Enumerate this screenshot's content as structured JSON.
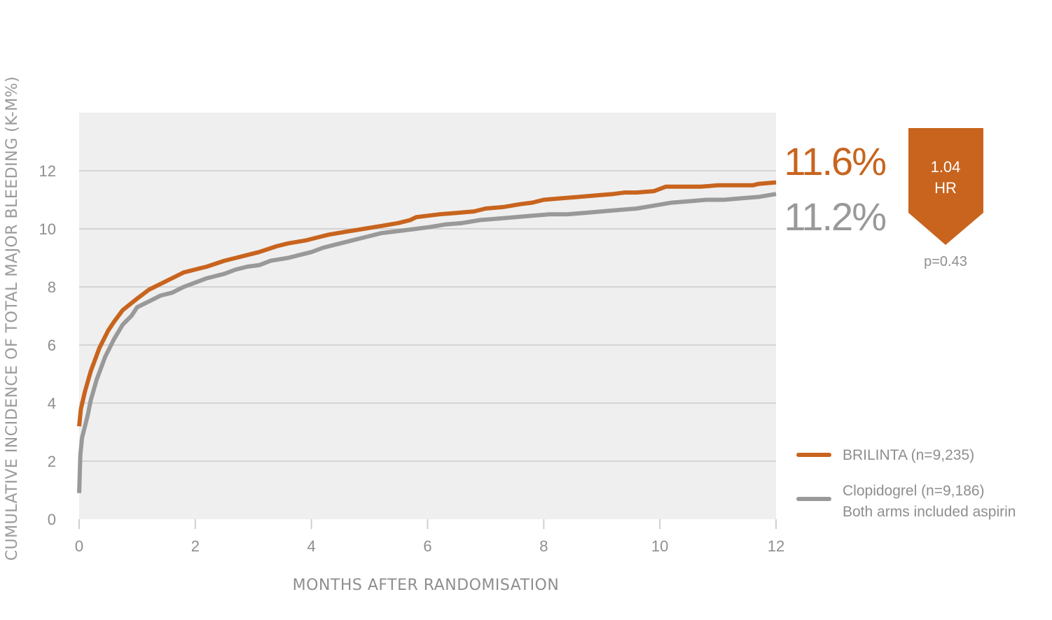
{
  "chart_data": {
    "type": "line",
    "ylabel": "CUMULATIVE INCIDENCE OF TOTAL MAJOR BLEEDING (K-M%)",
    "xlabel": "MONTHS AFTER RANDOMISATION",
    "xlim": [
      0,
      12
    ],
    "ylim": [
      0,
      14
    ],
    "x_ticks": [
      "0",
      "2",
      "4",
      "6",
      "8",
      "10",
      "12"
    ],
    "y_ticks": [
      "0",
      "2",
      "4",
      "6",
      "8",
      "10",
      "12"
    ],
    "grid": true,
    "legend_position": "bottom-right",
    "series": [
      {
        "name": "BRILINTA (n=9,235)",
        "color": "#C8641E",
        "end_label": "11.6%",
        "x": [
          0,
          0.03,
          0.1,
          0.2,
          0.35,
          0.5,
          0.6,
          0.75,
          1.0,
          1.2,
          1.5,
          1.8,
          2.0,
          2.2,
          2.5,
          2.7,
          2.9,
          3.1,
          3.4,
          3.6,
          3.9,
          4.1,
          4.3,
          4.6,
          4.9,
          5.2,
          5.5,
          5.7,
          5.8,
          6.0,
          6.2,
          6.5,
          6.8,
          7.0,
          7.3,
          7.6,
          7.8,
          8.0,
          8.3,
          8.6,
          8.9,
          9.2,
          9.4,
          9.6,
          9.9,
          10.1,
          10.4,
          10.7,
          11.0,
          11.3,
          11.6,
          11.7,
          12.0
        ],
        "values": [
          3.2,
          3.8,
          4.4,
          5.1,
          5.9,
          6.5,
          6.8,
          7.2,
          7.6,
          7.9,
          8.2,
          8.5,
          8.6,
          8.7,
          8.9,
          9.0,
          9.1,
          9.2,
          9.4,
          9.5,
          9.6,
          9.7,
          9.8,
          9.9,
          10.0,
          10.1,
          10.2,
          10.3,
          10.4,
          10.45,
          10.5,
          10.55,
          10.6,
          10.7,
          10.75,
          10.85,
          10.9,
          11.0,
          11.05,
          11.1,
          11.15,
          11.2,
          11.25,
          11.25,
          11.3,
          11.45,
          11.45,
          11.45,
          11.5,
          11.5,
          11.5,
          11.55,
          11.6
        ]
      },
      {
        "name": "Clopidogrel (n=9,186)",
        "color": "#999999",
        "end_label": "11.2%",
        "x": [
          0,
          0.02,
          0.05,
          0.1,
          0.15,
          0.2,
          0.3,
          0.45,
          0.6,
          0.75,
          0.9,
          1.0,
          1.2,
          1.4,
          1.6,
          1.8,
          2.0,
          2.2,
          2.5,
          2.7,
          2.9,
          3.1,
          3.3,
          3.6,
          3.8,
          4.0,
          4.2,
          4.4,
          4.6,
          4.8,
          5.0,
          5.2,
          5.4,
          5.6,
          5.8,
          6.0,
          6.3,
          6.6,
          6.9,
          7.2,
          7.5,
          7.8,
          8.1,
          8.4,
          8.7,
          9.0,
          9.3,
          9.6,
          9.9,
          10.2,
          10.5,
          10.8,
          11.1,
          11.4,
          11.7,
          12.0
        ],
        "values": [
          0.9,
          2.2,
          2.8,
          3.2,
          3.6,
          4.1,
          4.8,
          5.6,
          6.2,
          6.7,
          7.0,
          7.3,
          7.5,
          7.7,
          7.8,
          8.0,
          8.15,
          8.3,
          8.45,
          8.6,
          8.7,
          8.75,
          8.9,
          9.0,
          9.1,
          9.2,
          9.35,
          9.45,
          9.55,
          9.65,
          9.75,
          9.85,
          9.9,
          9.95,
          10.0,
          10.05,
          10.15,
          10.2,
          10.3,
          10.35,
          10.4,
          10.45,
          10.5,
          10.5,
          10.55,
          10.6,
          10.65,
          10.7,
          10.8,
          10.9,
          10.95,
          11.0,
          11.0,
          11.05,
          11.1,
          11.2
        ]
      }
    ],
    "annotations": {
      "hr_value": "1.04",
      "hr_label": "HR",
      "p_value": "p=0.43",
      "legend_note": "Both arms included aspirin"
    },
    "colors": {
      "plot_background": "#EFEFEF",
      "hr_badge": "#C8641E",
      "gridline": "#D4D4D4"
    }
  }
}
